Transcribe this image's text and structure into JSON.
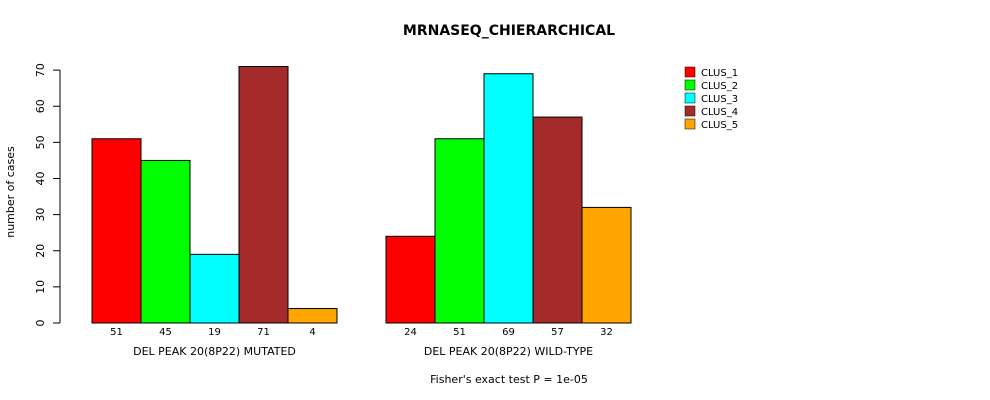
{
  "chart_data": {
    "type": "bar",
    "title": "MRNASEQ_CHIERARCHICAL",
    "xlabel": "",
    "ylabel": "number of cases",
    "ylim": [
      0,
      72.8
    ],
    "yticks": [
      0,
      10,
      20,
      30,
      40,
      50,
      60,
      70
    ],
    "grid": false,
    "legend_position": "top-right",
    "groups": [
      "DEL PEAK 20(8P22) MUTATED",
      "DEL PEAK 20(8P22) WILD-TYPE"
    ],
    "series": [
      {
        "name": "CLUS_1",
        "color": "#ff0000",
        "values": [
          51,
          24
        ]
      },
      {
        "name": "CLUS_2",
        "color": "#00ff00",
        "values": [
          45,
          51
        ]
      },
      {
        "name": "CLUS_3",
        "color": "#00ffff",
        "values": [
          19,
          69
        ]
      },
      {
        "name": "CLUS_4",
        "color": "#a52a2a",
        "values": [
          71,
          57
        ]
      },
      {
        "name": "CLUS_5",
        "color": "#ffa500",
        "values": [
          4,
          32
        ]
      }
    ],
    "footnote": "Fisher's exact test P = 1e-05"
  }
}
